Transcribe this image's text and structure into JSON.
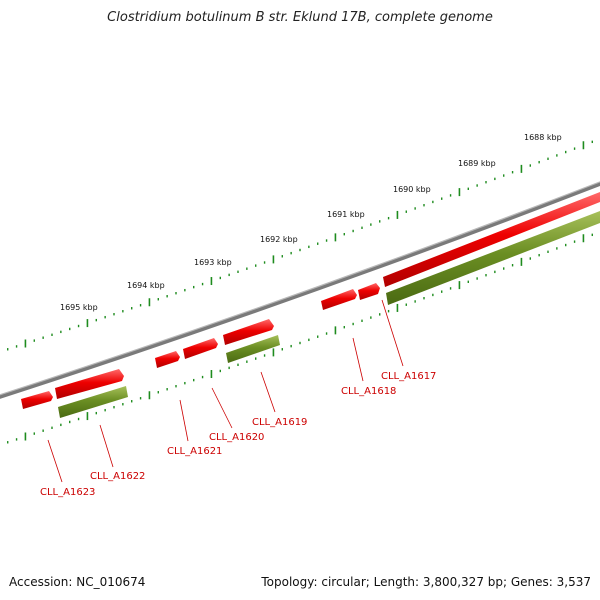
{
  "title": "Clostridium botulinum B str. Eklund 17B, complete genome",
  "accession": "Accession: NC_010674",
  "topology": "Topology: circular; Length: 3,800,327 bp; Genes: 3,537",
  "colors": {
    "backbone": "#7a7a7a",
    "cds": "#ee0000",
    "gene": "#6b8e23",
    "tick": "#1e8c1e",
    "label": "#cc0000"
  },
  "kbp_labels": [
    "1688 kbp",
    "1689 kbp",
    "1690 kbp",
    "1691 kbp",
    "1692 kbp",
    "1693 kbp",
    "1694 kbp",
    "1695 kbp"
  ],
  "genes": [
    "CLL_A1617",
    "CLL_A1618",
    "CLL_A1619",
    "CLL_A1620",
    "CLL_A1621",
    "CLL_A1622",
    "CLL_A1623"
  ]
}
